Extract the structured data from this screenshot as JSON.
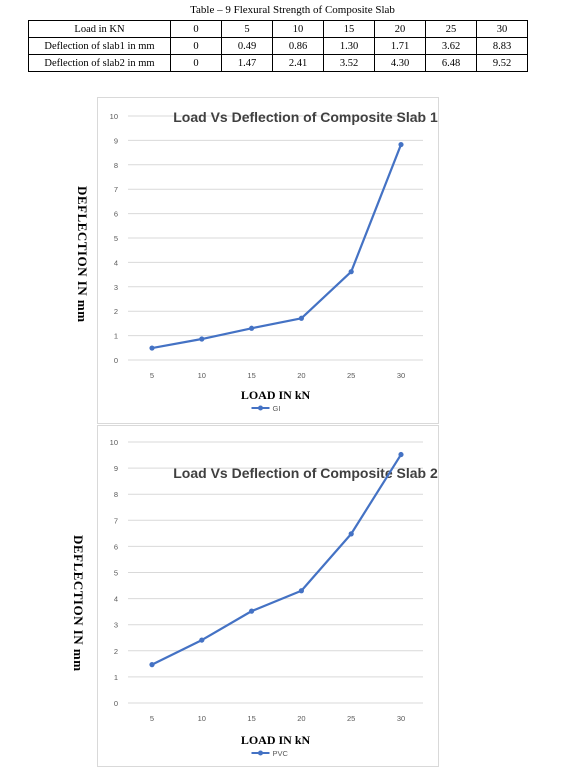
{
  "table": {
    "caption": "Table – 9 Flexural Strength of Composite Slab",
    "rows": [
      {
        "label": "Load in KN",
        "values": [
          "0",
          "5",
          "10",
          "15",
          "20",
          "25",
          "30"
        ]
      },
      {
        "label": "Deflection of slab1 in mm",
        "values": [
          "0",
          "0.49",
          "0.86",
          "1.30",
          "1.71",
          "3.62",
          "8.83"
        ]
      },
      {
        "label": "Deflection of slab2 in mm",
        "values": [
          "0",
          "1.47",
          "2.41",
          "3.52",
          "4.30",
          "6.48",
          "9.52"
        ]
      }
    ]
  },
  "chart_data": [
    {
      "type": "line",
      "title": "Load Vs Deflection of Composite Slab 1",
      "xlabel": "LOAD IN kN",
      "ylabel": "DEFLECTION IN mm",
      "x": [
        5,
        10,
        15,
        20,
        25,
        30
      ],
      "x_ticks": [
        "5",
        "10",
        "15",
        "20",
        "25",
        "30"
      ],
      "y_ticks": [
        "0",
        "1",
        "2",
        "3",
        "4",
        "5",
        "6",
        "7",
        "8",
        "9",
        "10"
      ],
      "ylim": [
        0,
        10
      ],
      "grid": true,
      "legend_position": "bottom",
      "series": [
        {
          "name": "GI",
          "color": "#4472c4",
          "values": [
            0.49,
            0.86,
            1.3,
            1.71,
            3.62,
            8.83
          ]
        }
      ]
    },
    {
      "type": "line",
      "title": "Load Vs Deflection of Composite Slab 2",
      "xlabel": "LOAD IN kN",
      "ylabel": "DEFLECTION IN mm",
      "x": [
        5,
        10,
        15,
        20,
        25,
        30
      ],
      "x_ticks": [
        "5",
        "10",
        "15",
        "20",
        "25",
        "30"
      ],
      "y_ticks": [
        "0",
        "1",
        "2",
        "3",
        "4",
        "5",
        "6",
        "7",
        "8",
        "9",
        "10"
      ],
      "ylim": [
        0,
        10
      ],
      "grid": true,
      "legend_position": "bottom",
      "series": [
        {
          "name": "PVC",
          "color": "#4472c4",
          "values": [
            1.47,
            2.41,
            3.52,
            4.3,
            6.48,
            9.52
          ]
        }
      ]
    }
  ]
}
